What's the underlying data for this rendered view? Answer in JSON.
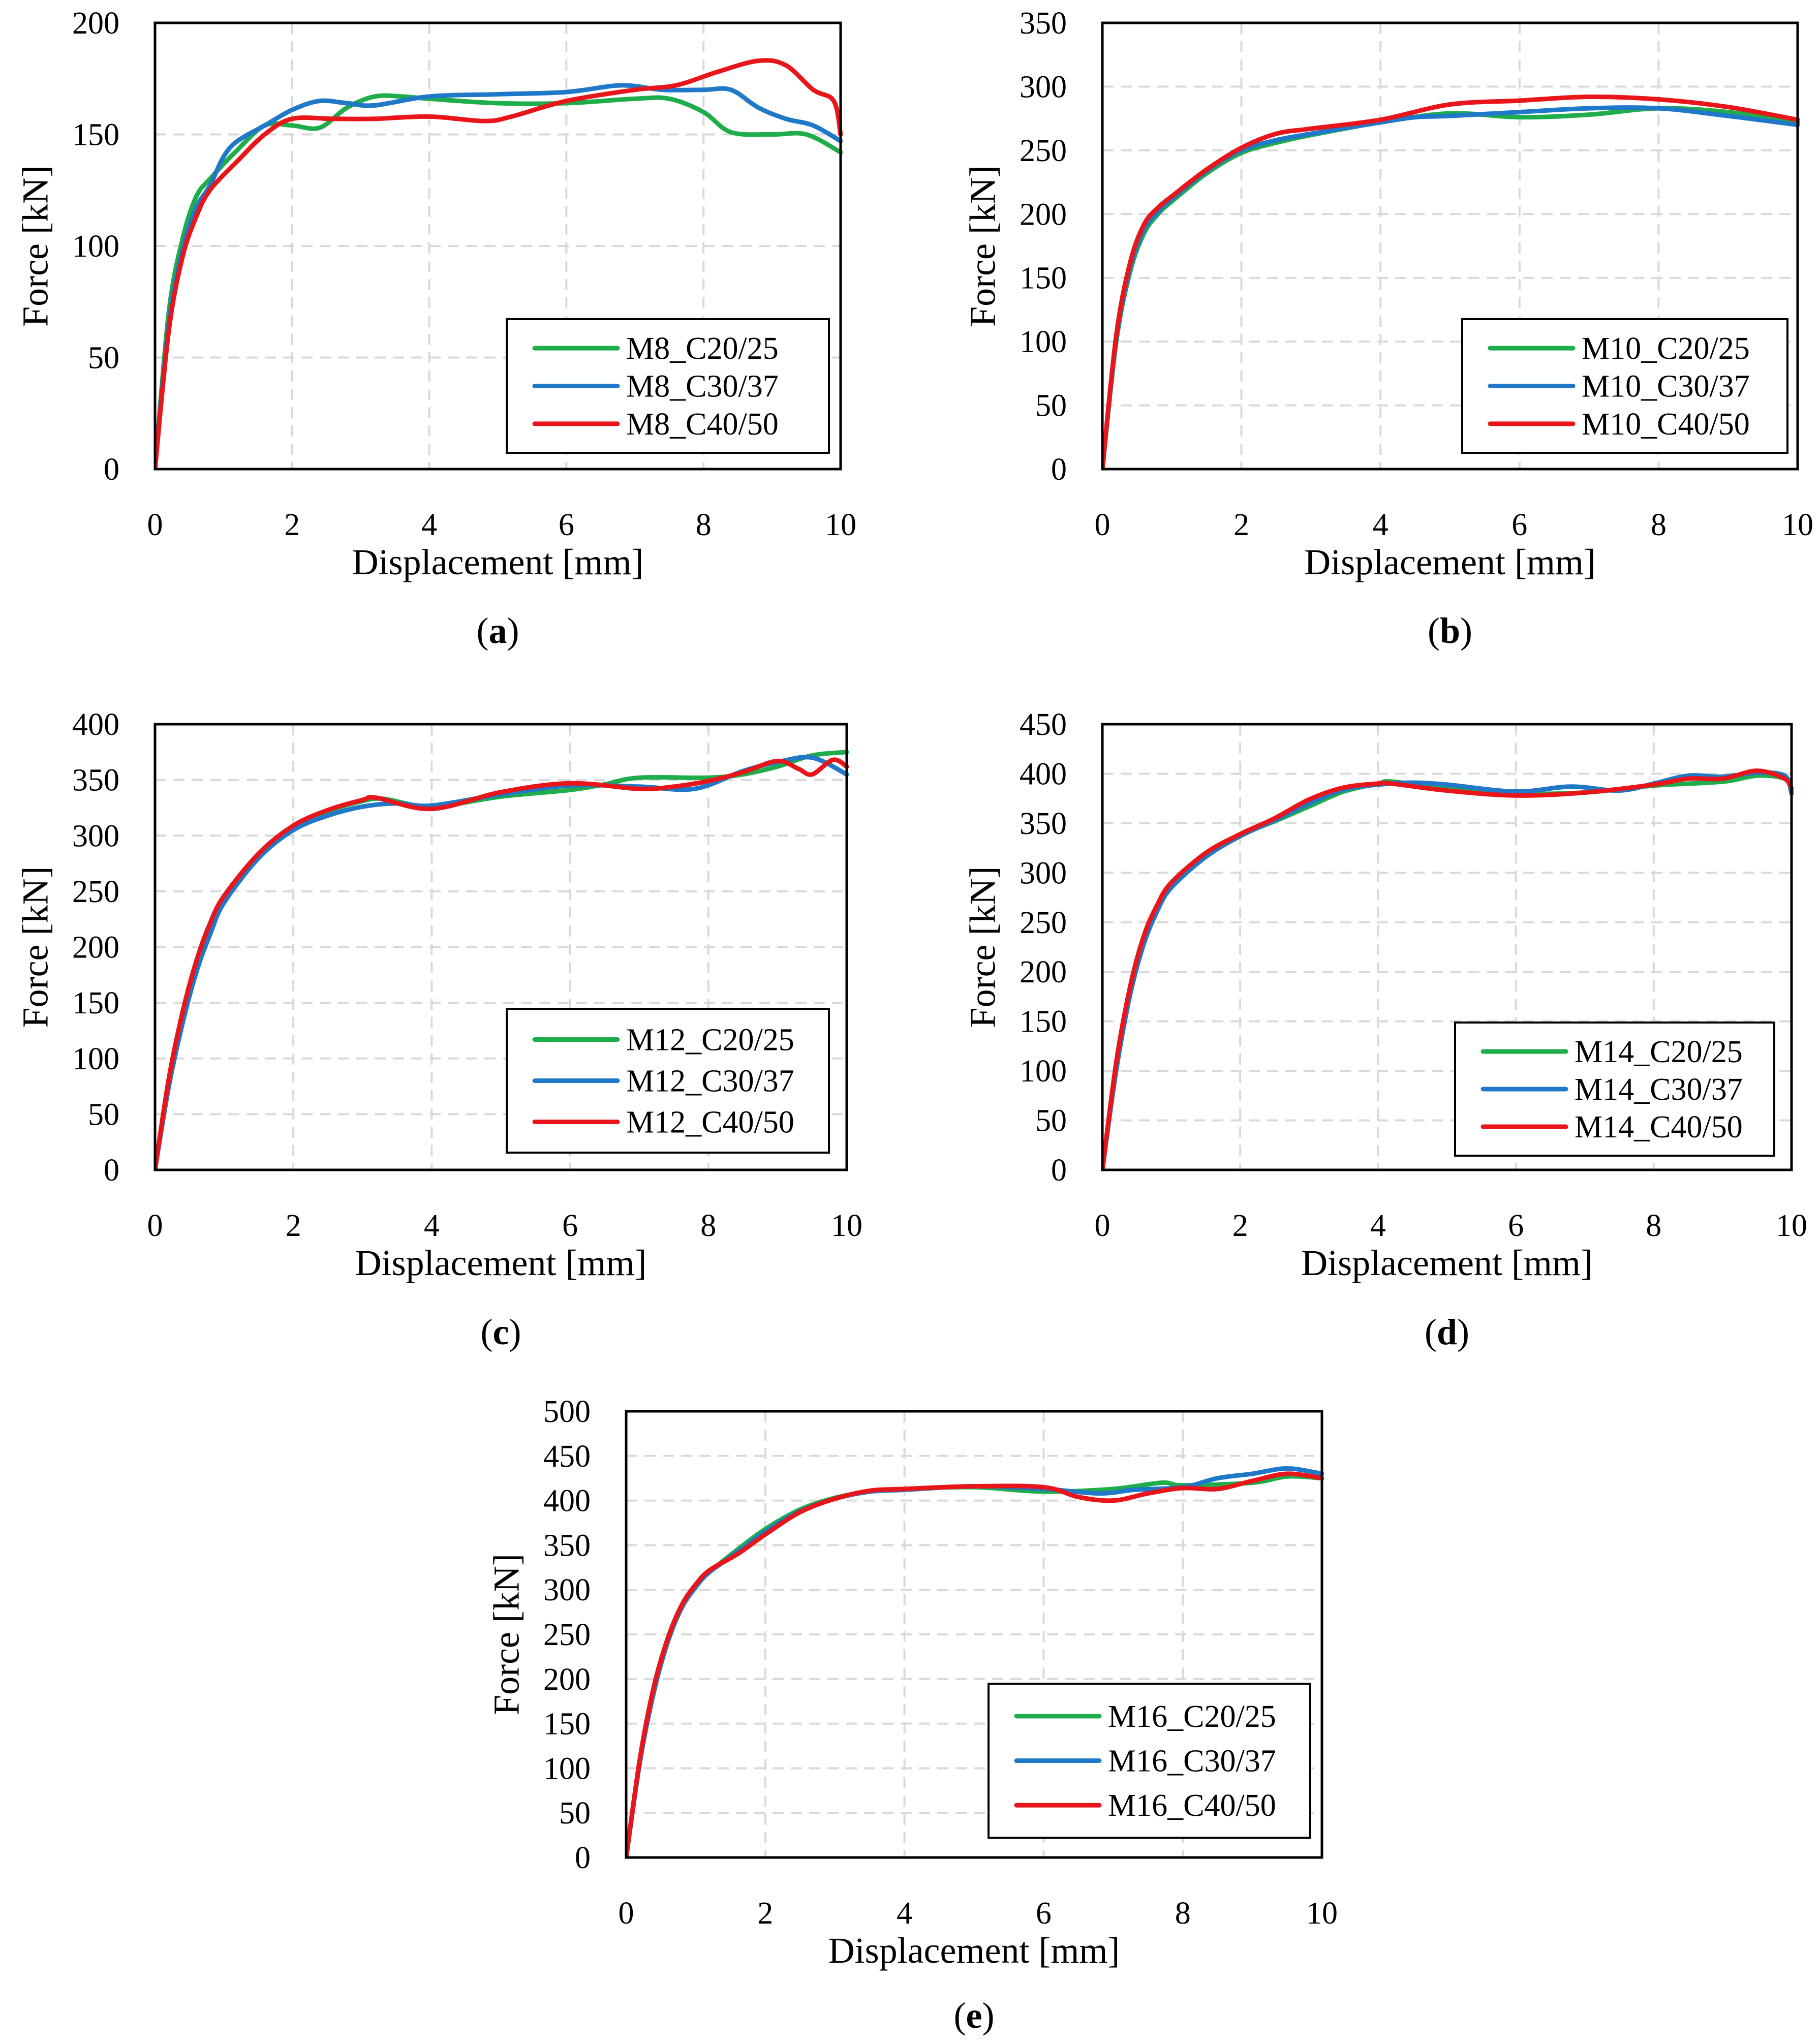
{
  "colors": {
    "C20/25": "#1ead4a",
    "C30/37": "#1f78c8",
    "C40/50": "#e8161b",
    "grid": "#d9d9d9"
  },
  "chart_data": [
    {
      "type": "line",
      "id": "a",
      "caption_letter": "a",
      "xlabel": "Displacement [mm]",
      "ylabel": "Force [kN]",
      "xlim": [
        0,
        10
      ],
      "ylim": [
        0,
        200
      ],
      "xticks": [
        "0",
        "2",
        "4",
        "6",
        "8",
        "10"
      ],
      "yticks": [
        "0",
        "50",
        "100",
        "150",
        "200"
      ],
      "legend_position": "bottom-right",
      "grid": "dashed",
      "series": [
        {
          "name": "M8_C20/25",
          "color_key": "C20/25",
          "x": [
            0,
            0.2,
            0.4,
            0.6,
            0.8,
            1.2,
            1.6,
            2.0,
            2.4,
            2.8,
            3.2,
            3.6,
            4.0,
            5.0,
            6.0,
            7.0,
            7.5,
            8.0,
            8.4,
            9.0,
            9.5,
            10.0
          ],
          "y": [
            0,
            70,
            103,
            122,
            130,
            143,
            154,
            154,
            153,
            162,
            167,
            167,
            166,
            164,
            164,
            166,
            166,
            160,
            151,
            150,
            150,
            142
          ]
        },
        {
          "name": "M8_C30/37",
          "color_key": "C30/37",
          "x": [
            0,
            0.2,
            0.4,
            0.6,
            0.8,
            1.0,
            1.2,
            1.6,
            2.0,
            2.4,
            2.8,
            3.2,
            4.0,
            5.0,
            6.0,
            6.8,
            7.4,
            8.0,
            8.4,
            8.8,
            9.2,
            9.6,
            10.0
          ],
          "y": [
            0,
            65,
            98,
            117,
            127,
            140,
            147,
            154,
            161,
            165,
            164,
            163,
            167,
            168,
            169,
            172,
            170,
            170,
            170,
            162,
            157,
            154,
            147
          ]
        },
        {
          "name": "M8_C40/50",
          "color_key": "C40/50",
          "x": [
            0,
            0.2,
            0.4,
            0.6,
            0.8,
            1.2,
            1.6,
            2.0,
            2.6,
            3.2,
            4.0,
            4.8,
            5.2,
            6.0,
            7.0,
            7.6,
            8.2,
            8.8,
            9.2,
            9.6,
            9.9,
            10.0
          ],
          "y": [
            0,
            62,
            95,
            113,
            125,
            138,
            150,
            157,
            157,
            157,
            158,
            156,
            158,
            165,
            170,
            172,
            178,
            183,
            181,
            170,
            165,
            150
          ]
        }
      ]
    },
    {
      "type": "line",
      "id": "b",
      "caption_letter": "b",
      "xlabel": "Displacement [mm]",
      "ylabel": "Force [kN]",
      "xlim": [
        0,
        10
      ],
      "ylim": [
        0,
        350
      ],
      "xticks": [
        "0",
        "2",
        "4",
        "6",
        "8",
        "10"
      ],
      "yticks": [
        "0",
        "50",
        "100",
        "150",
        "200",
        "250",
        "300",
        "350"
      ],
      "legend_position": "bottom-right",
      "grid": "dashed",
      "series": [
        {
          "name": "M10_C20/25",
          "color_key": "C20/25",
          "x": [
            0,
            0.2,
            0.4,
            0.6,
            0.8,
            1.0,
            1.5,
            2.0,
            2.5,
            3.0,
            4.0,
            5.0,
            6.0,
            7.0,
            8.0,
            9.0,
            10.0
          ],
          "y": [
            0,
            100,
            155,
            185,
            200,
            210,
            232,
            248,
            256,
            262,
            272,
            279,
            276,
            278,
            283,
            280,
            272
          ]
        },
        {
          "name": "M10_C30/37",
          "color_key": "C30/37",
          "x": [
            0,
            0.2,
            0.4,
            0.6,
            0.8,
            1.0,
            1.5,
            2.0,
            2.5,
            3.0,
            4.0,
            4.5,
            5.0,
            6.0,
            7.0,
            8.0,
            9.0,
            10.0
          ],
          "y": [
            0,
            102,
            158,
            188,
            202,
            212,
            234,
            250,
            258,
            263,
            272,
            276,
            277,
            280,
            283,
            283,
            277,
            270
          ]
        },
        {
          "name": "M10_C40/50",
          "color_key": "C40/50",
          "x": [
            0,
            0.2,
            0.4,
            0.6,
            0.8,
            1.0,
            1.5,
            2.0,
            2.5,
            3.0,
            4.0,
            5.0,
            6.0,
            7.0,
            8.0,
            9.0,
            10.0
          ],
          "y": [
            0,
            105,
            162,
            192,
            205,
            214,
            235,
            252,
            263,
            267,
            274,
            286,
            289,
            292,
            290,
            284,
            274
          ]
        }
      ]
    },
    {
      "type": "line",
      "id": "c",
      "caption_letter": "c",
      "xlabel": "Displacement [mm]",
      "ylabel": "Force [kN]",
      "xlim": [
        0,
        10
      ],
      "ylim": [
        0,
        400
      ],
      "xticks": [
        "0",
        "2",
        "4",
        "6",
        "8",
        "10"
      ],
      "yticks": [
        "0",
        "50",
        "100",
        "150",
        "200",
        "250",
        "300",
        "350",
        "400"
      ],
      "legend_position": "bottom-right",
      "grid": "dashed",
      "series": [
        {
          "name": "M12_C20/25",
          "color_key": "C20/25",
          "x": [
            0,
            0.2,
            0.4,
            0.6,
            0.8,
            1.0,
            1.5,
            2.0,
            2.5,
            3.0,
            3.3,
            4.0,
            5.0,
            6.0,
            6.5,
            7.0,
            8.0,
            8.5,
            9.0,
            9.5,
            10.0
          ],
          "y": [
            0,
            80,
            140,
            185,
            220,
            245,
            283,
            308,
            322,
            331,
            333,
            326,
            335,
            341,
            346,
            352,
            352,
            355,
            362,
            372,
            375
          ]
        },
        {
          "name": "M12_C30/37",
          "color_key": "C30/37",
          "x": [
            0,
            0.2,
            0.4,
            0.6,
            0.8,
            1.0,
            1.5,
            2.0,
            2.5,
            3.0,
            3.5,
            4.0,
            5.0,
            6.0,
            7.0,
            7.8,
            8.5,
            9.0,
            9.5,
            10.0
          ],
          "y": [
            0,
            75,
            132,
            178,
            212,
            240,
            280,
            305,
            318,
            326,
            329,
            327,
            337,
            345,
            344,
            342,
            358,
            366,
            370,
            355
          ]
        },
        {
          "name": "M12_C40/50",
          "color_key": "C40/50",
          "x": [
            0,
            0.2,
            0.4,
            0.6,
            0.8,
            1.0,
            1.5,
            2.0,
            2.5,
            3.0,
            3.2,
            4.0,
            5.0,
            6.0,
            7.0,
            7.5,
            8.0,
            8.5,
            9.0,
            9.3,
            9.5,
            9.8,
            10.0
          ],
          "y": [
            0,
            82,
            142,
            188,
            222,
            246,
            284,
            309,
            323,
            332,
            334,
            324,
            339,
            347,
            342,
            344,
            349,
            357,
            367,
            360,
            355,
            368,
            362
          ]
        }
      ]
    },
    {
      "type": "line",
      "id": "d",
      "caption_letter": "d",
      "xlabel": "Displacement [mm]",
      "ylabel": "Force [kN]",
      "xlim": [
        0,
        10
      ],
      "ylim": [
        0,
        450
      ],
      "xticks": [
        "0",
        "2",
        "4",
        "6",
        "8",
        "10"
      ],
      "yticks": [
        "0",
        "50",
        "100",
        "150",
        "200",
        "250",
        "300",
        "350",
        "400",
        "450"
      ],
      "legend_position": "bottom-right",
      "grid": "dashed",
      "series": [
        {
          "name": "M14_C20/25",
          "color_key": "C20/25",
          "x": [
            0,
            0.2,
            0.4,
            0.6,
            0.8,
            1.0,
            1.5,
            2.0,
            2.5,
            3.0,
            3.5,
            4.0,
            4.2,
            5.0,
            6.0,
            7.0,
            8.0,
            9.0,
            9.5,
            9.9,
            10.0
          ],
          "y": [
            0,
            105,
            180,
            232,
            265,
            287,
            318,
            338,
            352,
            367,
            382,
            390,
            392,
            385,
            380,
            381,
            388,
            392,
            398,
            395,
            382
          ]
        },
        {
          "name": "M14_C30/37",
          "color_key": "C30/37",
          "x": [
            0,
            0.2,
            0.4,
            0.6,
            0.8,
            1.0,
            1.5,
            2.0,
            2.5,
            3.0,
            3.5,
            4.0,
            4.5,
            5.0,
            6.0,
            6.8,
            7.5,
            8.0,
            8.5,
            9.0,
            9.5,
            9.9,
            10.0
          ],
          "y": [
            0,
            100,
            176,
            228,
            262,
            285,
            316,
            337,
            353,
            370,
            384,
            389,
            391,
            389,
            382,
            387,
            383,
            390,
            398,
            397,
            401,
            398,
            380
          ]
        },
        {
          "name": "M14_C40/50",
          "color_key": "C40/50",
          "x": [
            0,
            0.2,
            0.4,
            0.6,
            0.8,
            1.0,
            1.5,
            2.0,
            2.5,
            3.0,
            3.5,
            4.0,
            4.2,
            5.0,
            6.0,
            7.0,
            8.0,
            8.5,
            9.0,
            9.5,
            9.9,
            10.0
          ],
          "y": [
            0,
            108,
            184,
            236,
            268,
            290,
            320,
            339,
            355,
            374,
            386,
            390,
            390,
            383,
            378,
            381,
            389,
            395,
            395,
            403,
            395,
            385
          ]
        }
      ]
    },
    {
      "type": "line",
      "id": "e",
      "caption_letter": "e",
      "xlabel": "Displacement [mm]",
      "ylabel": "Force [kN]",
      "xlim": [
        0,
        10
      ],
      "ylim": [
        0,
        500
      ],
      "xticks": [
        "0",
        "2",
        "4",
        "6",
        "8",
        "10"
      ],
      "yticks": [
        "0",
        "50",
        "100",
        "150",
        "200",
        "250",
        "300",
        "350",
        "400",
        "450",
        "500"
      ],
      "legend_position": "bottom-right",
      "grid": "dashed",
      "series": [
        {
          "name": "M16_C20/25",
          "color_key": "C20/25",
          "x": [
            0,
            0.2,
            0.4,
            0.6,
            0.8,
            1.0,
            1.2,
            1.6,
            2.0,
            2.5,
            3.0,
            3.5,
            4.0,
            5.0,
            6.0,
            7.0,
            7.7,
            8.0,
            9.0,
            9.5,
            10.0
          ],
          "y": [
            0,
            110,
            190,
            245,
            282,
            305,
            320,
            345,
            368,
            390,
            403,
            410,
            413,
            415,
            410,
            413,
            420,
            417,
            420,
            427,
            425
          ]
        },
        {
          "name": "M16_C30/37",
          "color_key": "C30/37",
          "x": [
            0,
            0.2,
            0.4,
            0.6,
            0.8,
            1.0,
            1.2,
            1.6,
            2.0,
            2.5,
            3.0,
            3.5,
            4.0,
            5.0,
            6.0,
            6.8,
            7.3,
            8.0,
            8.5,
            9.0,
            9.5,
            10.0
          ],
          "y": [
            0,
            108,
            186,
            242,
            280,
            303,
            320,
            342,
            365,
            388,
            402,
            410,
            412,
            416,
            413,
            408,
            412,
            415,
            425,
            430,
            436,
            430
          ]
        },
        {
          "name": "M16_C40/50",
          "color_key": "C40/50",
          "x": [
            0,
            0.2,
            0.4,
            0.6,
            0.8,
            1.0,
            1.2,
            1.6,
            2.0,
            2.5,
            3.0,
            3.5,
            4.0,
            5.0,
            6.0,
            6.5,
            7.0,
            7.5,
            8.0,
            8.5,
            9.0,
            9.5,
            10.0
          ],
          "y": [
            0,
            112,
            192,
            246,
            283,
            306,
            322,
            340,
            362,
            387,
            402,
            411,
            413,
            416,
            415,
            404,
            400,
            408,
            414,
            413,
            422,
            430,
            425
          ]
        }
      ]
    }
  ]
}
